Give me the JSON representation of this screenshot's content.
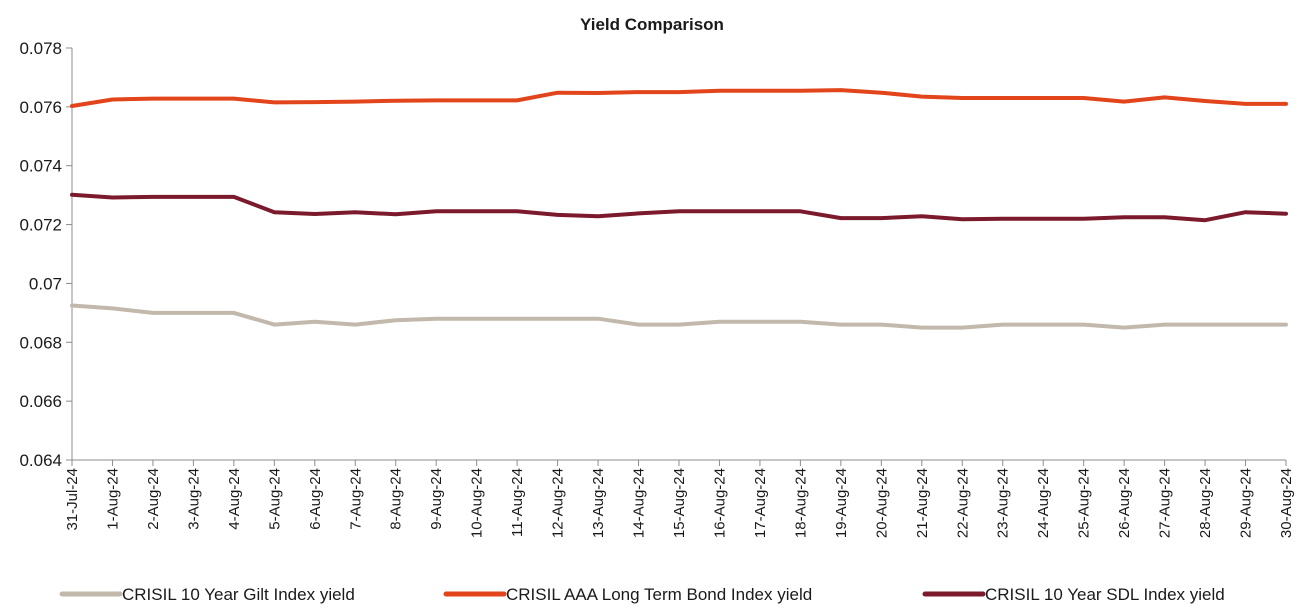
{
  "chart_data": {
    "type": "line",
    "title": "Yield Comparison",
    "xlabel": "",
    "ylabel": "",
    "ylim": [
      0.064,
      0.078
    ],
    "yticks": [
      "0.064",
      "0.066",
      "0.068",
      "0.07",
      "0.072",
      "0.074",
      "0.076",
      "0.078"
    ],
    "categories": [
      "31-Jul-24",
      "1-Aug-24",
      "2-Aug-24",
      "3-Aug-24",
      "4-Aug-24",
      "5-Aug-24",
      "6-Aug-24",
      "7-Aug-24",
      "8-Aug-24",
      "9-Aug-24",
      "10-Aug-24",
      "11-Aug-24",
      "12-Aug-24",
      "13-Aug-24",
      "14-Aug-24",
      "15-Aug-24",
      "16-Aug-24",
      "17-Aug-24",
      "18-Aug-24",
      "19-Aug-24",
      "20-Aug-24",
      "21-Aug-24",
      "22-Aug-24",
      "23-Aug-24",
      "24-Aug-24",
      "25-Aug-24",
      "26-Aug-24",
      "27-Aug-24",
      "28-Aug-24",
      "29-Aug-24",
      "30-Aug-24"
    ],
    "grid": false,
    "legend_position": "bottom",
    "series": [
      {
        "name": "CRISIL 10 Year Gilt Index yield",
        "color": "#c2b8ab",
        "values": [
          0.06925,
          0.06915,
          0.069,
          0.069,
          0.069,
          0.0686,
          0.0687,
          0.0686,
          0.06875,
          0.0688,
          0.0688,
          0.0688,
          0.0688,
          0.0688,
          0.0686,
          0.0686,
          0.0687,
          0.0687,
          0.0687,
          0.0686,
          0.0686,
          0.0685,
          0.0685,
          0.0686,
          0.0686,
          0.0686,
          0.0685,
          0.0686,
          0.0686,
          0.0686,
          0.0686
        ]
      },
      {
        "name": "CRISIL AAA Long Term Bond Index yield",
        "color": "#e2451b",
        "values": [
          0.07603,
          0.07625,
          0.07628,
          0.07628,
          0.07628,
          0.07615,
          0.07616,
          0.07618,
          0.07621,
          0.07622,
          0.07622,
          0.07622,
          0.07648,
          0.07647,
          0.0765,
          0.0765,
          0.07655,
          0.07655,
          0.07655,
          0.07657,
          0.07648,
          0.07635,
          0.0763,
          0.0763,
          0.0763,
          0.0763,
          0.07618,
          0.07632,
          0.0762,
          0.0761,
          0.0761
        ]
      },
      {
        "name": "CRISIL 10 Year SDL Index yield",
        "color": "#7b1a2c",
        "values": [
          0.07301,
          0.07292,
          0.07294,
          0.07294,
          0.07294,
          0.07242,
          0.07236,
          0.07242,
          0.07235,
          0.07245,
          0.07245,
          0.07245,
          0.07233,
          0.07228,
          0.07238,
          0.07245,
          0.07245,
          0.07245,
          0.07245,
          0.07222,
          0.07222,
          0.07228,
          0.07218,
          0.0722,
          0.0722,
          0.0722,
          0.07225,
          0.07225,
          0.07215,
          0.07242,
          0.07237
        ]
      }
    ]
  }
}
